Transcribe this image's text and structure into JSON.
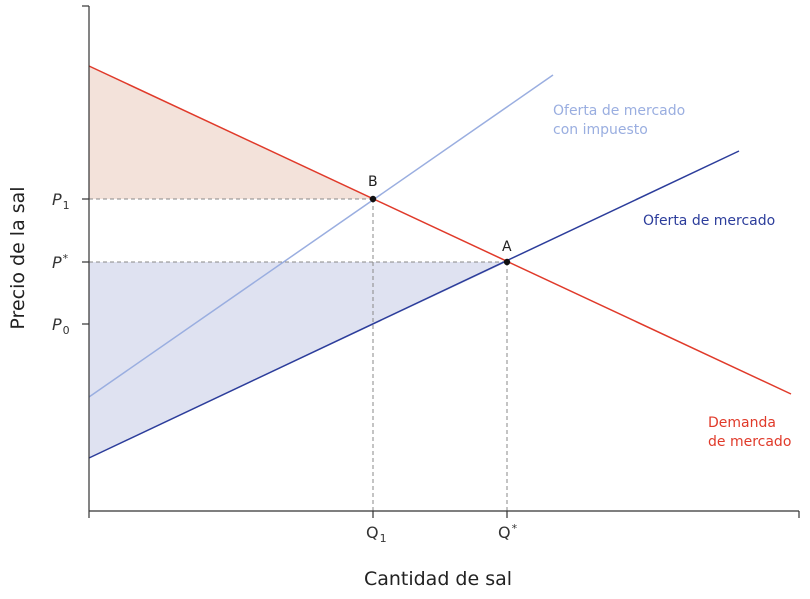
{
  "axes": {
    "y_title": "Precio de la sal",
    "x_title": "Cantidad de sal"
  },
  "y_ticks": {
    "p1": {
      "main": "P",
      "sub": "1"
    },
    "pstar": {
      "main": "P",
      "sup": "*"
    },
    "p0": {
      "main": "P",
      "sub": "0"
    }
  },
  "x_ticks": {
    "q1": {
      "main": "Q",
      "sub": "1"
    },
    "qstar": {
      "main": "Q",
      "sup": "*"
    }
  },
  "points": {
    "a": "A",
    "b": "B"
  },
  "curves": {
    "supply_tax": {
      "line1": "Oferta de mercado",
      "line2": "con impuesto",
      "color": "#9aaee0"
    },
    "supply": {
      "label": "Oferta de mercado",
      "color": "#2c3d9b"
    },
    "demand": {
      "line1": "Demanda",
      "line2": "de mercado",
      "color": "#e03a2a"
    }
  },
  "colors": {
    "consumer_surplus_fill": "#f3e2da",
    "producer_surplus_fill": "#dfe2f1",
    "axis": "#333333",
    "guide": "#888888"
  }
}
